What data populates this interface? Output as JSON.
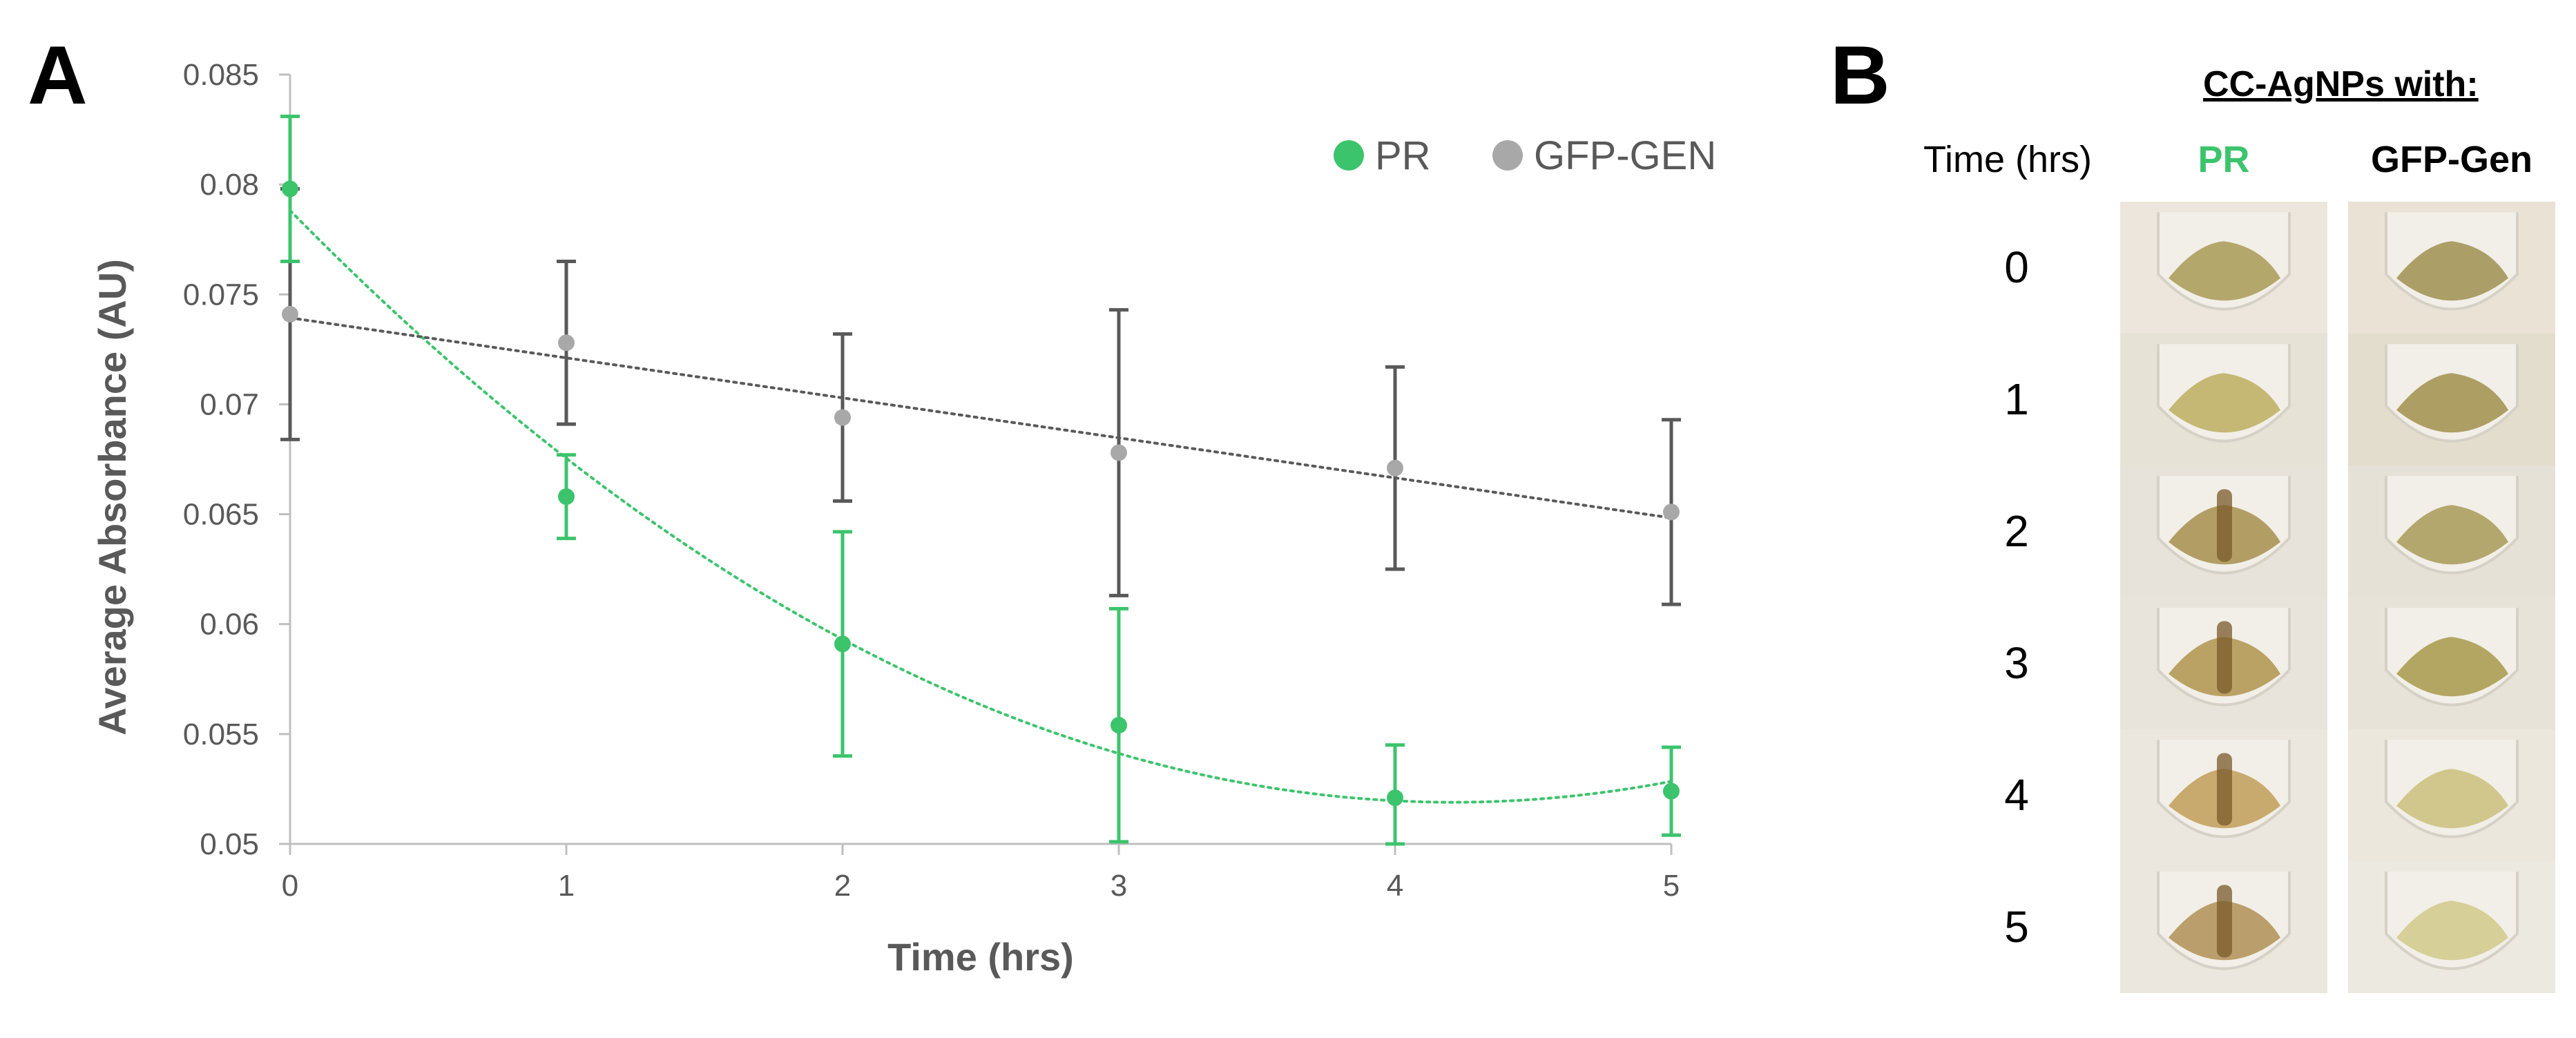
{
  "panel_a": {
    "letter": "A"
  },
  "panel_b": {
    "letter": "B",
    "heading": "CC-AgNPs with:",
    "time_header": "Time (hrs)",
    "columns": [
      {
        "label": "PR",
        "color": "#3cc46c"
      },
      {
        "label": "GFP-Gen",
        "color": "#000000"
      }
    ],
    "rows": [
      {
        "time": "0",
        "pr_tube": {
          "bg": "#ece6dc",
          "pellet": "#a99a55",
          "streak": false
        },
        "gfp_tube": {
          "bg": "#ebe2d6",
          "pellet": "#9f9050",
          "streak": false
        }
      },
      {
        "time": "1",
        "pr_tube": {
          "bg": "#e6e2d6",
          "pellet": "#bdae60",
          "streak": false
        },
        "gfp_tube": {
          "bg": "#e3ddcd",
          "pellet": "#a18f4c",
          "streak": false
        }
      },
      {
        "time": "2",
        "pr_tube": {
          "bg": "#e7e3da",
          "pellet": "#a78f4e",
          "streak": true
        },
        "gfp_tube": {
          "bg": "#e5e1d7",
          "pellet": "#a89a57",
          "streak": false
        }
      },
      {
        "time": "3",
        "pr_tube": {
          "bg": "#e8e4dc",
          "pellet": "#b0944d",
          "streak": true
        },
        "gfp_tube": {
          "bg": "#e7e3d8",
          "pellet": "#a8994a",
          "streak": false
        }
      },
      {
        "time": "4",
        "pr_tube": {
          "bg": "#ebe7de",
          "pellet": "#c29d58",
          "streak": true
        },
        "gfp_tube": {
          "bg": "#ebe7dd",
          "pellet": "#cbbf7c",
          "streak": false
        }
      },
      {
        "time": "5",
        "pr_tube": {
          "bg": "#ebe7de",
          "pellet": "#b08f55",
          "streak": true
        },
        "gfp_tube": {
          "bg": "#ebe9e0",
          "pellet": "#d2c98a",
          "streak": false
        }
      }
    ]
  },
  "chart_data": {
    "type": "scatter",
    "title": "",
    "xlabel": "Time (hrs)",
    "ylabel": "Average Absorbance (AU)",
    "xlim": [
      0,
      5
    ],
    "ylim": [
      0.05,
      0.085
    ],
    "x_ticks": [
      "0",
      "1",
      "2",
      "3",
      "4",
      "5"
    ],
    "y_ticks": [
      "0.05",
      "0.055",
      "0.06",
      "0.065",
      "0.07",
      "0.075",
      "0.08",
      "0.085"
    ],
    "legend_position": "top-right",
    "grid": false,
    "series": [
      {
        "name": "PR",
        "color": "#3cc46c",
        "x": [
          0,
          1,
          2,
          3,
          4,
          5
        ],
        "y": [
          0.0798,
          0.0658,
          0.0591,
          0.0554,
          0.0521,
          0.0524
        ],
        "error": [
          0.0033,
          0.0019,
          0.0051,
          0.0053,
          0.0024,
          0.002
        ],
        "trendline": "polynomial"
      },
      {
        "name": "GFP-GEN",
        "color": "#a8a8a8",
        "x": [
          0,
          1,
          2,
          3,
          4,
          5
        ],
        "y": [
          0.0741,
          0.0728,
          0.0694,
          0.0678,
          0.0671,
          0.0651
        ],
        "error": [
          0.0057,
          0.0037,
          0.0038,
          0.0065,
          0.0046,
          0.0042
        ],
        "trendline": "linear"
      }
    ]
  }
}
